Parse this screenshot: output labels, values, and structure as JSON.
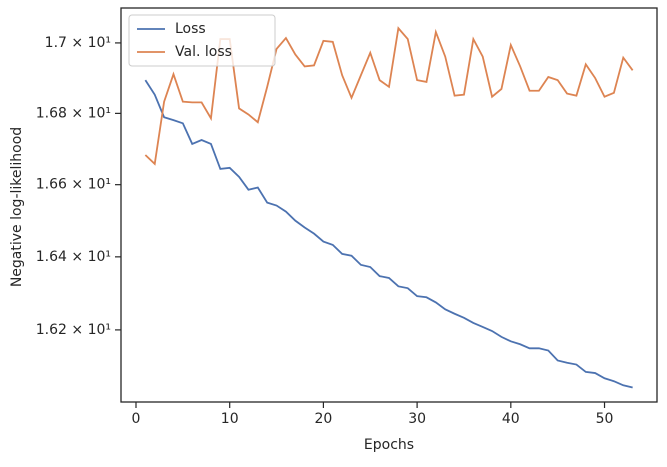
{
  "chart_data": {
    "type": "line",
    "xlabel": "Epochs",
    "ylabel": "Negative log-likelihood",
    "x": [
      1,
      2,
      3,
      4,
      5,
      6,
      7,
      8,
      9,
      10,
      11,
      12,
      13,
      14,
      15,
      16,
      17,
      18,
      19,
      20,
      21,
      22,
      23,
      24,
      25,
      26,
      27,
      28,
      29,
      30,
      31,
      32,
      33,
      34,
      35,
      36,
      37,
      38,
      39,
      40,
      41,
      42,
      43,
      44,
      45,
      46,
      47,
      48,
      49,
      50,
      51,
      52,
      53
    ],
    "series": [
      {
        "name": "Loss",
        "color": "#4c72b0",
        "values": [
          16.894,
          16.853,
          16.789,
          16.781,
          16.772,
          16.714,
          16.725,
          16.714,
          16.644,
          16.647,
          16.622,
          16.586,
          16.592,
          16.55,
          16.542,
          16.525,
          16.5,
          16.481,
          16.464,
          16.442,
          16.433,
          16.408,
          16.403,
          16.378,
          16.372,
          16.347,
          16.342,
          16.319,
          16.314,
          16.292,
          16.289,
          16.275,
          16.256,
          16.244,
          16.233,
          16.219,
          16.208,
          16.197,
          16.181,
          16.169,
          16.161,
          16.15,
          16.15,
          16.144,
          16.117,
          16.111,
          16.106,
          16.086,
          16.083,
          16.069,
          16.061,
          16.05,
          16.044
        ]
      },
      {
        "name": "Val. loss",
        "color": "#dd8452",
        "values": [
          16.683,
          16.658,
          16.833,
          16.911,
          16.833,
          16.831,
          16.831,
          16.786,
          17.011,
          17.011,
          16.814,
          16.797,
          16.775,
          16.875,
          16.983,
          17.014,
          16.967,
          16.933,
          16.936,
          17.006,
          17.003,
          16.908,
          16.844,
          16.908,
          16.972,
          16.894,
          16.875,
          17.042,
          17.011,
          16.894,
          16.889,
          17.031,
          16.961,
          16.85,
          16.853,
          17.011,
          16.961,
          16.847,
          16.869,
          16.994,
          16.933,
          16.864,
          16.864,
          16.903,
          16.894,
          16.856,
          16.85,
          16.939,
          16.9,
          16.847,
          16.858,
          16.958,
          16.922
        ]
      }
    ],
    "xlim": [
      -1.6,
      55.6
    ],
    "xticks": [
      0,
      10,
      20,
      30,
      40,
      50
    ],
    "ylim": [
      16.005,
      17.1
    ],
    "yscale": "log",
    "yticks": [
      {
        "value": 16.2,
        "label": "1.62 × 10¹"
      },
      {
        "value": 16.4,
        "label": "1.64 × 10¹"
      },
      {
        "value": 16.6,
        "label": "1.66 × 10¹"
      },
      {
        "value": 16.8,
        "label": "1.68 × 10¹"
      },
      {
        "value": 17.0,
        "label": "1.7 × 10¹"
      }
    ],
    "grid": false,
    "legend": "upper left"
  }
}
